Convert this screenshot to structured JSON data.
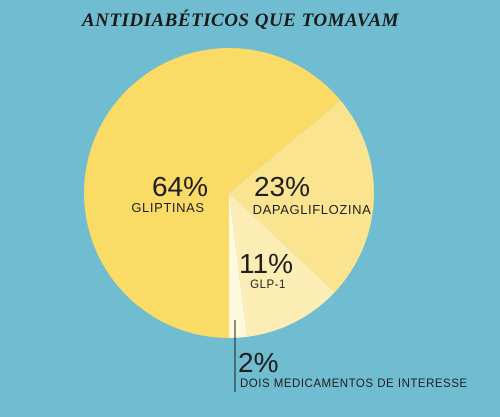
{
  "chart_data": {
    "type": "pie",
    "title": "ANTIDIABÉTICOS QUE TOMAVAM",
    "slices": [
      {
        "label": "GLIPTINAS",
        "value": 64,
        "value_label": "64%",
        "color": "#FADB66"
      },
      {
        "label": "DAPAGLIFLOZINA",
        "value": 23,
        "value_label": "23%",
        "color": "#FBE490"
      },
      {
        "label": "GLP-1",
        "value": 11,
        "value_label": "11%",
        "color": "#FCEDB5"
      },
      {
        "label": "DOIS MEDICAMENTOS DE INTERESSE",
        "value": 2,
        "value_label": "2%",
        "color": "#FEF8DC"
      }
    ],
    "background_color": "#70BCD0"
  }
}
